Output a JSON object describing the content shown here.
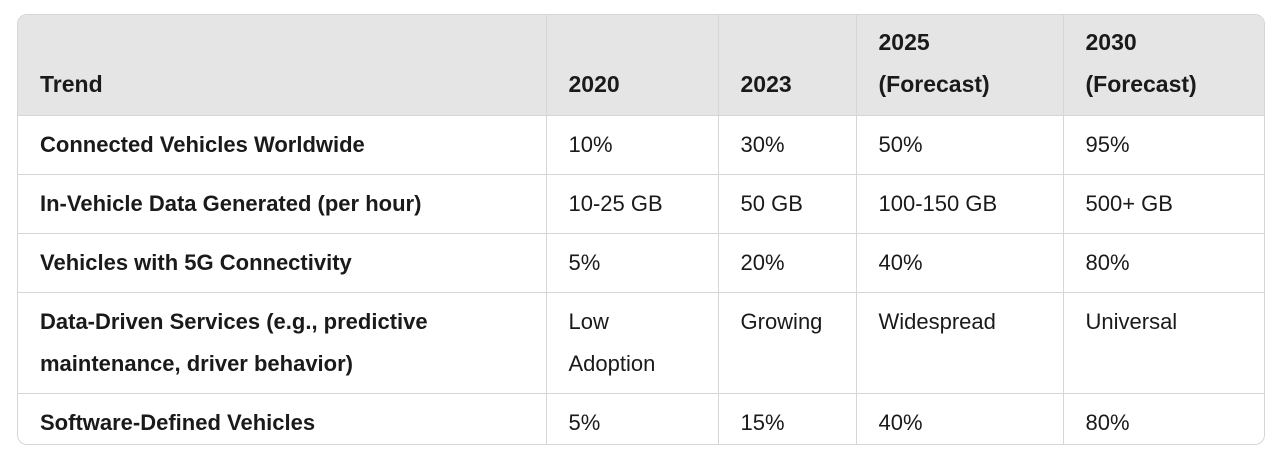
{
  "table": {
    "headers": [
      {
        "line1": "",
        "line2": "Trend"
      },
      {
        "line1": "",
        "line2": "2020"
      },
      {
        "line1": "",
        "line2": "2023"
      },
      {
        "line1": "2025",
        "line2": "(Forecast)"
      },
      {
        "line1": "2030",
        "line2": "(Forecast)"
      }
    ],
    "rows": [
      {
        "trend": [
          "Connected Vehicles Worldwide"
        ],
        "c2020": [
          "10%"
        ],
        "c2023": [
          "30%"
        ],
        "c2025": [
          "50%"
        ],
        "c2030": [
          "95%"
        ]
      },
      {
        "trend": [
          "In-Vehicle Data Generated (per hour)"
        ],
        "c2020": [
          "10-25 GB"
        ],
        "c2023": [
          "50 GB"
        ],
        "c2025": [
          "100-150 GB"
        ],
        "c2030": [
          "500+ GB"
        ]
      },
      {
        "trend": [
          "Vehicles with 5G Connectivity"
        ],
        "c2020": [
          "5%"
        ],
        "c2023": [
          "20%"
        ],
        "c2025": [
          "40%"
        ],
        "c2030": [
          "80%"
        ]
      },
      {
        "trend": [
          "Data-Driven Services (e.g., predictive",
          "maintenance, driver behavior)"
        ],
        "c2020": [
          "Low",
          "Adoption"
        ],
        "c2023": [
          "Growing"
        ],
        "c2025": [
          "Widespread"
        ],
        "c2030": [
          "Universal"
        ]
      },
      {
        "trend": [
          "Software-Defined Vehicles"
        ],
        "c2020": [
          "5%"
        ],
        "c2023": [
          "15%"
        ],
        "c2025": [
          "40%"
        ],
        "c2030": [
          "80%"
        ]
      }
    ]
  }
}
